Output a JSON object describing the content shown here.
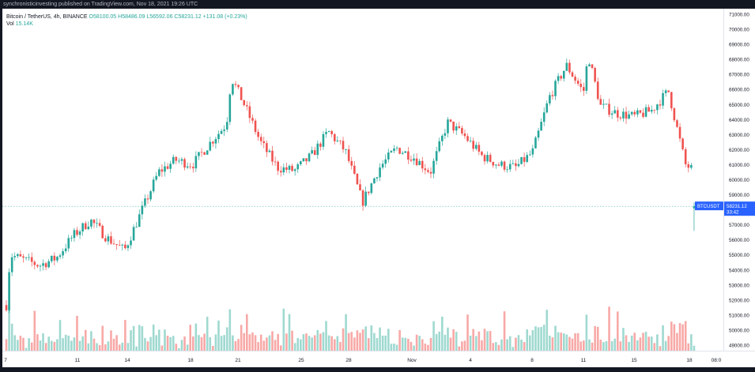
{
  "header": {
    "text": "synchronisticinvesting published on TradingView.com, Nov 18, 2021 19:26 UTC"
  },
  "legend": {
    "symbol": "Bitcoin / TetherUS, 4h, BINANCE",
    "open": "O58100.05",
    "high": "H58486.09",
    "low": "L56592.06",
    "close": "C58231.12",
    "change": "+131.08 (+0.23%)",
    "vol_label": "Vol",
    "vol_value": "15.14K"
  },
  "price_tag": {
    "symbol": "BTCUSDT",
    "price": "58231.12",
    "countdown": "33:42"
  },
  "colors": {
    "up": "#26a69a",
    "down": "#ef5350",
    "up_vol": "#9fd9d0",
    "down_vol": "#f7a9a7",
    "price_line": "#26a69a",
    "tag_bg": "#2962ff"
  },
  "chart_data": {
    "type": "candlestick",
    "title": "Bitcoin / TetherUS, 4h, BINANCE",
    "y_ticks": [
      "71000.00",
      "70000.00",
      "69000.00",
      "68000.00",
      "67000.00",
      "66000.00",
      "65000.00",
      "64000.00",
      "63000.00",
      "62000.00",
      "61000.00",
      "60000.00",
      "59000.00",
      "58000.00",
      "57000.00",
      "56000.00",
      "55000.00",
      "54000.00",
      "53000.00",
      "52000.00",
      "51000.00",
      "50000.00",
      "49000.00"
    ],
    "x_ticks": [
      "7",
      "11",
      "14",
      "18",
      "21",
      "25",
      "28",
      "Nov",
      "4",
      "8",
      "11",
      "15",
      "18",
      "08:0"
    ],
    "ylim": [
      48600,
      71100
    ],
    "timeframe": "4h",
    "last_price": 58231.12,
    "path_points": [
      {
        "date": "Oct 7",
        "price": 51000
      },
      {
        "date": "Oct 7",
        "price": 55000
      },
      {
        "date": "Oct 9",
        "price": 54300
      },
      {
        "date": "Oct 10",
        "price": 54800
      },
      {
        "date": "Oct 11",
        "price": 56300
      },
      {
        "date": "Oct 12",
        "price": 57300
      },
      {
        "date": "Oct 13",
        "price": 56100
      },
      {
        "date": "Oct 14",
        "price": 55300
      },
      {
        "date": "Oct 15",
        "price": 57900
      },
      {
        "date": "Oct 16",
        "price": 60500
      },
      {
        "date": "Oct 17",
        "price": 61300
      },
      {
        "date": "Oct 18",
        "price": 61000
      },
      {
        "date": "Oct 19",
        "price": 62400
      },
      {
        "date": "Oct 20",
        "price": 63700
      },
      {
        "date": "Oct 20",
        "price": 66800
      },
      {
        "date": "Oct 21",
        "price": 65100
      },
      {
        "date": "Oct 22",
        "price": 62500
      },
      {
        "date": "Oct 23",
        "price": 60800
      },
      {
        "date": "Oct 24",
        "price": 60600
      },
      {
        "date": "Oct 25",
        "price": 61600
      },
      {
        "date": "Oct 26",
        "price": 63200
      },
      {
        "date": "Oct 27",
        "price": 61900
      },
      {
        "date": "Oct 28",
        "price": 58500
      },
      {
        "date": "Oct 29",
        "price": 60800
      },
      {
        "date": "Oct 30",
        "price": 62100
      },
      {
        "date": "Oct 31",
        "price": 61500
      },
      {
        "date": "Nov 1",
        "price": 60500
      },
      {
        "date": "Nov 2",
        "price": 63800
      },
      {
        "date": "Nov 3",
        "price": 62900
      },
      {
        "date": "Nov 4",
        "price": 61600
      },
      {
        "date": "Nov 5",
        "price": 61000
      },
      {
        "date": "Nov 6",
        "price": 60800
      },
      {
        "date": "Nov 7",
        "price": 61800
      },
      {
        "date": "Nov 8",
        "price": 65500
      },
      {
        "date": "Nov 9",
        "price": 67600
      },
      {
        "date": "Nov 10",
        "price": 65800
      },
      {
        "date": "Nov 10",
        "price": 68300
      },
      {
        "date": "Nov 11",
        "price": 64900
      },
      {
        "date": "Nov 12",
        "price": 64400
      },
      {
        "date": "Nov 13",
        "price": 64200
      },
      {
        "date": "Nov 14",
        "price": 64600
      },
      {
        "date": "Nov 15",
        "price": 65900
      },
      {
        "date": "Nov 16",
        "price": 61000
      },
      {
        "date": "Nov 17",
        "price": 60200
      },
      {
        "date": "Nov 18",
        "price": 58231
      }
    ],
    "volume_label": "Vol",
    "volume_last": "15.14K"
  }
}
